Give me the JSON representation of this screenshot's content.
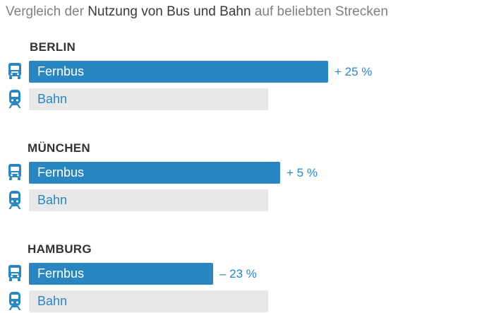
{
  "title": {
    "part1": "Vergleich der ",
    "hl1": "Nutzung von Bus und Bahn",
    "part2": " auf beliebten Strecken"
  },
  "colors": {
    "bus": "#2986c1",
    "bahn": "#e8e8e8",
    "accent_text": "#2986c1"
  },
  "icons": {
    "bus": "bus-icon",
    "bahn": "train-icon"
  },
  "chart_data": {
    "type": "bar",
    "orientation": "horizontal",
    "title": "Vergleich der Nutzung von Bus und Bahn auf beliebten Strecken",
    "value_unit": "relative",
    "groups": [
      {
        "city": "BERLIN",
        "bars": [
          {
            "label": "Fernbus",
            "value": 1.25,
            "delta": "+ 25 %"
          },
          {
            "label": "Bahn",
            "value": 1.0,
            "delta": ""
          }
        ]
      },
      {
        "city": "MÜNCHEN",
        "bars": [
          {
            "label": "Fernbus",
            "value": 1.05,
            "delta": "+ 5 %"
          },
          {
            "label": "Bahn",
            "value": 1.0,
            "delta": ""
          }
        ]
      },
      {
        "city": "HAMBURG",
        "bars": [
          {
            "label": "Fernbus",
            "value": 0.77,
            "delta": "– 23 %"
          },
          {
            "label": "Bahn",
            "value": 1.0,
            "delta": ""
          }
        ]
      }
    ]
  }
}
